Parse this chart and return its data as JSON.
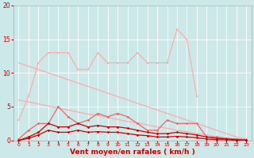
{
  "x": [
    0,
    1,
    2,
    3,
    4,
    5,
    6,
    7,
    8,
    9,
    10,
    11,
    12,
    13,
    14,
    15,
    16,
    17,
    18,
    19,
    20,
    21,
    22,
    23
  ],
  "line_upper": [
    3.0,
    6.5,
    11.5,
    13.0,
    13.0,
    13.0,
    10.5,
    10.5,
    13.0,
    11.5,
    11.5,
    11.5,
    13.0,
    11.5,
    11.5,
    11.5,
    16.5,
    15.0,
    6.5,
    null,
    null,
    null,
    null,
    null
  ],
  "line_trend_high": [
    11.5,
    11.0,
    10.5,
    10.0,
    9.5,
    9.0,
    8.5,
    8.0,
    7.5,
    7.0,
    6.5,
    6.0,
    5.5,
    5.0,
    4.5,
    4.0,
    3.5,
    3.0,
    2.5,
    2.0,
    1.5,
    1.0,
    0.5,
    0.2
  ],
  "line_trend_low": [
    6.0,
    5.7,
    5.4,
    5.1,
    4.8,
    4.5,
    4.2,
    3.9,
    3.7,
    3.4,
    3.1,
    2.8,
    2.6,
    2.3,
    2.0,
    1.8,
    1.5,
    1.3,
    1.0,
    0.8,
    0.5,
    0.3,
    0.1,
    0.05
  ],
  "line_mid": [
    0.2,
    1.5,
    2.5,
    2.5,
    5.0,
    3.5,
    2.5,
    3.0,
    4.0,
    3.5,
    4.0,
    3.5,
    2.5,
    1.5,
    1.5,
    3.0,
    2.5,
    2.5,
    2.5,
    0.5,
    0.5,
    0.3,
    0.2,
    0.1
  ],
  "line_low1": [
    0.0,
    0.5,
    1.2,
    2.5,
    2.0,
    2.0,
    2.5,
    2.0,
    2.2,
    2.0,
    2.0,
    1.8,
    1.5,
    1.2,
    1.0,
    1.0,
    1.2,
    1.0,
    0.8,
    0.5,
    0.3,
    0.2,
    0.1,
    0.05
  ],
  "line_low2": [
    0.0,
    0.3,
    0.8,
    1.5,
    1.2,
    1.2,
    1.5,
    1.2,
    1.3,
    1.2,
    1.2,
    1.0,
    0.8,
    0.7,
    0.5,
    0.5,
    0.6,
    0.5,
    0.4,
    0.2,
    0.1,
    0.1,
    0.0,
    0.0
  ],
  "bg_color": "#cce8e8",
  "grid_color": "#ffffff",
  "color_light": "#ffaaaa",
  "color_mid": "#ee6666",
  "color_dark": "#cc0000",
  "xlabel": "Vent moyen/en rafales ( km/h )",
  "xlabel_color": "#cc0000",
  "tick_color": "#cc0000",
  "ylim": [
    0,
    20
  ],
  "xlim": [
    -0.5,
    23.5
  ],
  "yticks": [
    0,
    5,
    10,
    15,
    20
  ],
  "xticks": [
    0,
    1,
    2,
    3,
    4,
    5,
    6,
    7,
    8,
    9,
    10,
    11,
    12,
    13,
    14,
    15,
    16,
    17,
    18,
    19,
    20,
    21,
    22,
    23
  ]
}
